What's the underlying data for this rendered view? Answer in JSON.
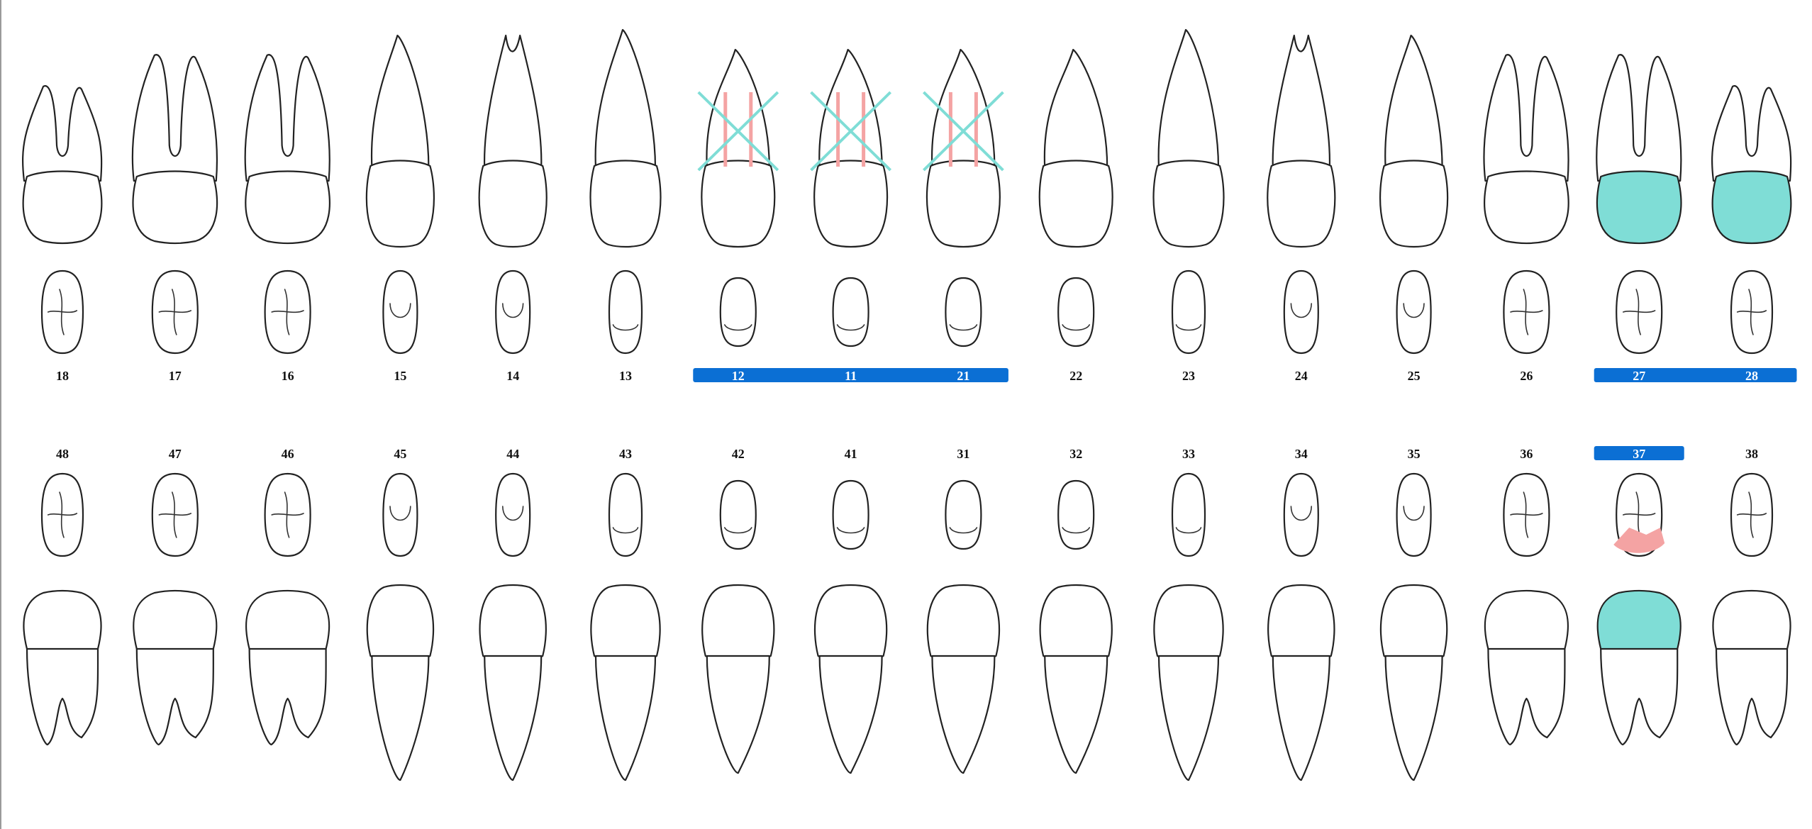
{
  "colors": {
    "selection": "#0b6fd4",
    "filling": "#7fddd6",
    "caries": "#f4a3a3",
    "missing_mark": "#7fddd6",
    "root_canal": "#f4a3a3",
    "outline": "#222222"
  },
  "upper_teeth": [
    {
      "number": "18",
      "type": "molar-3",
      "roots": "three",
      "selected": false,
      "missing": false,
      "filling": false
    },
    {
      "number": "17",
      "type": "molar",
      "roots": "three",
      "selected": false,
      "missing": false,
      "filling": false
    },
    {
      "number": "16",
      "type": "molar",
      "roots": "three",
      "selected": false,
      "missing": false,
      "filling": false
    },
    {
      "number": "15",
      "type": "premolar",
      "roots": "single",
      "selected": false,
      "missing": false,
      "filling": false
    },
    {
      "number": "14",
      "type": "premolar",
      "roots": "double",
      "selected": false,
      "missing": false,
      "filling": false
    },
    {
      "number": "13",
      "type": "canine",
      "roots": "single",
      "selected": false,
      "missing": false,
      "filling": false
    },
    {
      "number": "12",
      "type": "incisor",
      "roots": "single",
      "selected": true,
      "missing": true,
      "filling": false
    },
    {
      "number": "11",
      "type": "incisor",
      "roots": "single",
      "selected": true,
      "missing": true,
      "filling": false
    },
    {
      "number": "21",
      "type": "incisor",
      "roots": "single",
      "selected": true,
      "missing": true,
      "filling": false
    },
    {
      "number": "22",
      "type": "incisor",
      "roots": "single",
      "selected": false,
      "missing": false,
      "filling": false
    },
    {
      "number": "23",
      "type": "canine",
      "roots": "single",
      "selected": false,
      "missing": false,
      "filling": false
    },
    {
      "number": "24",
      "type": "premolar",
      "roots": "double",
      "selected": false,
      "missing": false,
      "filling": false
    },
    {
      "number": "25",
      "type": "premolar",
      "roots": "single",
      "selected": false,
      "missing": false,
      "filling": false
    },
    {
      "number": "26",
      "type": "molar",
      "roots": "three",
      "selected": false,
      "missing": false,
      "filling": false
    },
    {
      "number": "27",
      "type": "molar",
      "roots": "three",
      "selected": true,
      "missing": false,
      "filling": true
    },
    {
      "number": "28",
      "type": "molar-3",
      "roots": "three",
      "selected": true,
      "missing": false,
      "filling": true
    }
  ],
  "lower_teeth": [
    {
      "number": "48",
      "type": "molar-3",
      "roots": "double",
      "selected": false,
      "filling": false,
      "caries": false
    },
    {
      "number": "47",
      "type": "molar",
      "roots": "double",
      "selected": false,
      "filling": false,
      "caries": false
    },
    {
      "number": "46",
      "type": "molar",
      "roots": "double",
      "selected": false,
      "filling": false,
      "caries": false
    },
    {
      "number": "45",
      "type": "premolar",
      "roots": "single",
      "selected": false,
      "filling": false,
      "caries": false
    },
    {
      "number": "44",
      "type": "premolar",
      "roots": "single",
      "selected": false,
      "filling": false,
      "caries": false
    },
    {
      "number": "43",
      "type": "canine",
      "roots": "single",
      "selected": false,
      "filling": false,
      "caries": false
    },
    {
      "number": "42",
      "type": "incisor",
      "roots": "single",
      "selected": false,
      "filling": false,
      "caries": false
    },
    {
      "number": "41",
      "type": "incisor",
      "roots": "single",
      "selected": false,
      "filling": false,
      "caries": false
    },
    {
      "number": "31",
      "type": "incisor",
      "roots": "single",
      "selected": false,
      "filling": false,
      "caries": false
    },
    {
      "number": "32",
      "type": "incisor",
      "roots": "single",
      "selected": false,
      "filling": false,
      "caries": false
    },
    {
      "number": "33",
      "type": "canine",
      "roots": "single",
      "selected": false,
      "filling": false,
      "caries": false
    },
    {
      "number": "34",
      "type": "premolar",
      "roots": "single",
      "selected": false,
      "filling": false,
      "caries": false
    },
    {
      "number": "35",
      "type": "premolar",
      "roots": "single",
      "selected": false,
      "filling": false,
      "caries": false
    },
    {
      "number": "36",
      "type": "molar",
      "roots": "double",
      "selected": false,
      "filling": false,
      "caries": false
    },
    {
      "number": "37",
      "type": "molar",
      "roots": "double",
      "selected": true,
      "filling": true,
      "caries": true
    },
    {
      "number": "38",
      "type": "molar-3",
      "roots": "double",
      "selected": false,
      "filling": false,
      "caries": false
    }
  ]
}
